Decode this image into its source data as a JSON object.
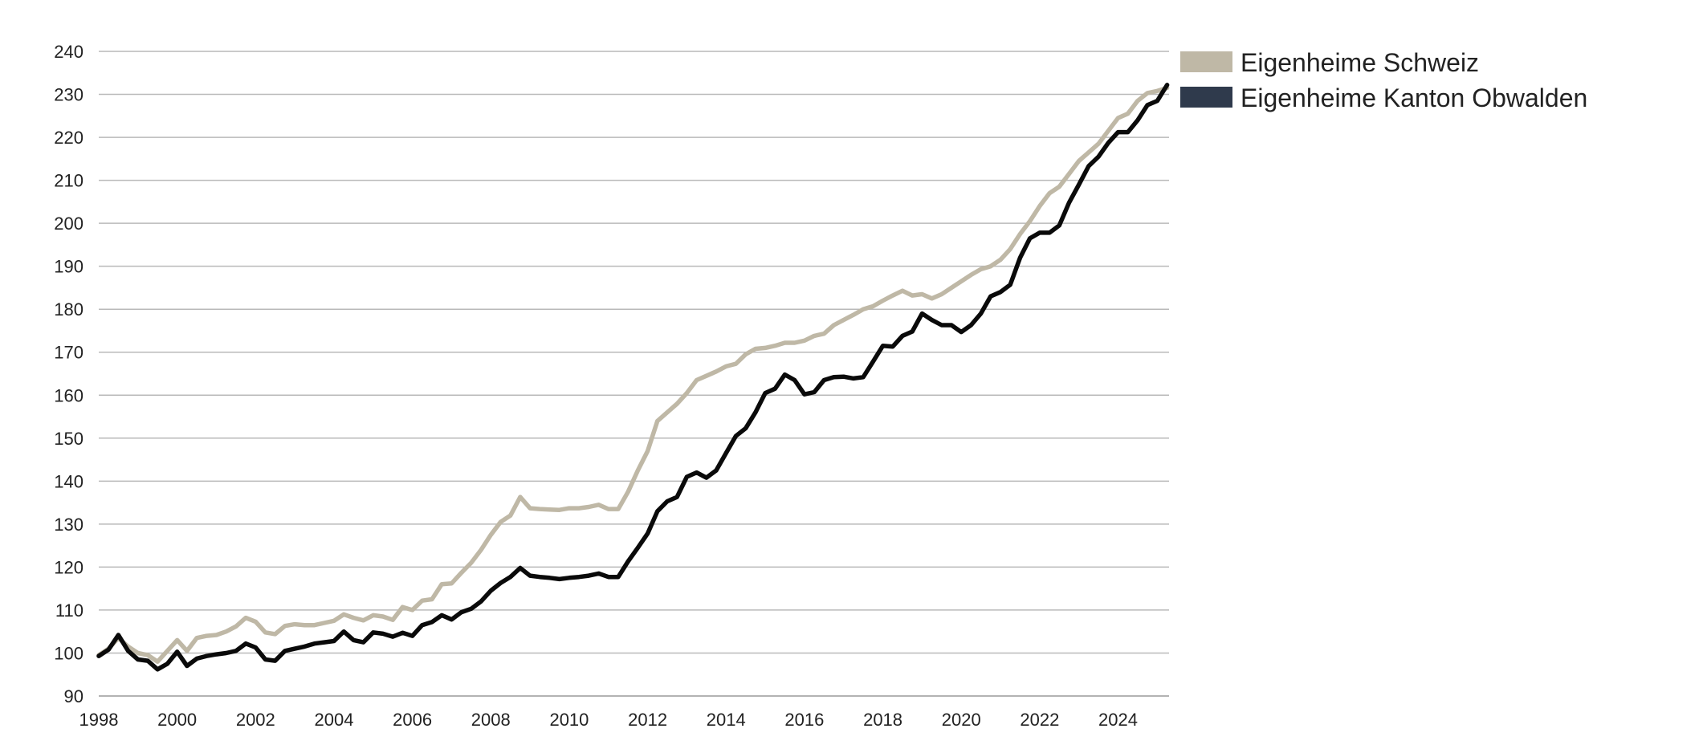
{
  "chart_data": {
    "type": "line",
    "title": "",
    "xlabel": "",
    "ylabel": "",
    "xlim": [
      1998,
      2025.3
    ],
    "ylim": [
      90,
      240
    ],
    "grid": true,
    "legend_position": "top-right",
    "x_ticks": [
      "1998",
      "2000",
      "2002",
      "2004",
      "2006",
      "2008",
      "2010",
      "2012",
      "2014",
      "2016",
      "2018",
      "2020",
      "2022",
      "2024"
    ],
    "y_ticks": [
      "90",
      "100",
      "110",
      "120",
      "130",
      "140",
      "150",
      "160",
      "170",
      "180",
      "190",
      "200",
      "210",
      "220",
      "230",
      "240"
    ],
    "series": [
      {
        "name": "Eigenheime Schweiz",
        "color": "#bfb8a6",
        "points": [
          [
            1998.0,
            99.5
          ],
          [
            1998.25,
            101.0
          ],
          [
            1998.5,
            103.5
          ],
          [
            1998.75,
            101.5
          ],
          [
            1999.0,
            100.0
          ],
          [
            1999.25,
            99.5
          ],
          [
            1999.5,
            98.0
          ],
          [
            1999.75,
            100.5
          ],
          [
            2000.0,
            103.0
          ],
          [
            2000.25,
            100.5
          ],
          [
            2000.5,
            103.5
          ],
          [
            2000.75,
            104.0
          ],
          [
            2001.0,
            104.2
          ],
          [
            2001.25,
            105.0
          ],
          [
            2001.5,
            106.2
          ],
          [
            2001.75,
            108.2
          ],
          [
            2002.0,
            107.3
          ],
          [
            2002.25,
            104.8
          ],
          [
            2002.5,
            104.4
          ],
          [
            2002.75,
            106.3
          ],
          [
            2003.0,
            106.7
          ],
          [
            2003.25,
            106.5
          ],
          [
            2003.5,
            106.5
          ],
          [
            2003.75,
            107.0
          ],
          [
            2004.0,
            107.5
          ],
          [
            2004.25,
            109.0
          ],
          [
            2004.5,
            108.2
          ],
          [
            2004.75,
            107.6
          ],
          [
            2005.0,
            108.8
          ],
          [
            2005.25,
            108.5
          ],
          [
            2005.5,
            107.7
          ],
          [
            2005.75,
            110.7
          ],
          [
            2006.0,
            110.0
          ],
          [
            2006.25,
            112.2
          ],
          [
            2006.5,
            112.5
          ],
          [
            2006.75,
            116.0
          ],
          [
            2007.0,
            116.2
          ],
          [
            2007.25,
            118.7
          ],
          [
            2007.5,
            121.0
          ],
          [
            2007.75,
            124.0
          ],
          [
            2008.0,
            127.5
          ],
          [
            2008.25,
            130.5
          ],
          [
            2008.5,
            132.0
          ],
          [
            2008.75,
            136.3
          ],
          [
            2009.0,
            133.7
          ],
          [
            2009.25,
            133.5
          ],
          [
            2009.5,
            133.4
          ],
          [
            2009.75,
            133.3
          ],
          [
            2010.0,
            133.7
          ],
          [
            2010.25,
            133.7
          ],
          [
            2010.5,
            134.0
          ],
          [
            2010.75,
            134.5
          ],
          [
            2011.0,
            133.5
          ],
          [
            2011.25,
            133.5
          ],
          [
            2011.5,
            137.5
          ],
          [
            2011.75,
            142.5
          ],
          [
            2012.0,
            147.0
          ],
          [
            2012.25,
            154.0
          ],
          [
            2012.5,
            156.0
          ],
          [
            2012.75,
            158.0
          ],
          [
            2013.0,
            160.5
          ],
          [
            2013.25,
            163.5
          ],
          [
            2013.5,
            164.5
          ],
          [
            2013.75,
            165.5
          ],
          [
            2014.0,
            166.7
          ],
          [
            2014.25,
            167.3
          ],
          [
            2014.5,
            169.5
          ],
          [
            2014.75,
            170.8
          ],
          [
            2015.0,
            171.0
          ],
          [
            2015.25,
            171.5
          ],
          [
            2015.5,
            172.2
          ],
          [
            2015.75,
            172.2
          ],
          [
            2016.0,
            172.7
          ],
          [
            2016.25,
            173.8
          ],
          [
            2016.5,
            174.3
          ],
          [
            2016.75,
            176.3
          ],
          [
            2017.0,
            177.5
          ],
          [
            2017.25,
            178.7
          ],
          [
            2017.5,
            180.0
          ],
          [
            2017.75,
            180.7
          ],
          [
            2018.0,
            182.0
          ],
          [
            2018.25,
            183.2
          ],
          [
            2018.5,
            184.3
          ],
          [
            2018.75,
            183.2
          ],
          [
            2019.0,
            183.5
          ],
          [
            2019.25,
            182.5
          ],
          [
            2019.5,
            183.5
          ],
          [
            2019.75,
            185.0
          ],
          [
            2020.0,
            186.5
          ],
          [
            2020.25,
            188.0
          ],
          [
            2020.5,
            189.3
          ],
          [
            2020.75,
            190.0
          ],
          [
            2021.0,
            191.5
          ],
          [
            2021.25,
            194.0
          ],
          [
            2021.5,
            197.5
          ],
          [
            2021.75,
            200.5
          ],
          [
            2022.0,
            204.0
          ],
          [
            2022.25,
            207.0
          ],
          [
            2022.5,
            208.5
          ],
          [
            2022.75,
            211.5
          ],
          [
            2023.0,
            214.5
          ],
          [
            2023.25,
            216.5
          ],
          [
            2023.5,
            218.5
          ],
          [
            2023.75,
            221.5
          ],
          [
            2024.0,
            224.5
          ],
          [
            2024.25,
            225.5
          ],
          [
            2024.5,
            228.5
          ],
          [
            2024.75,
            230.3
          ],
          [
            2025.0,
            230.8
          ],
          [
            2025.25,
            231.5
          ]
        ]
      },
      {
        "name": "Eigenheime Kanton Obwalden",
        "color": "#0a0a0a",
        "legend_color": "#2f3a4c",
        "points": [
          [
            1998.0,
            99.3
          ],
          [
            1998.25,
            100.8
          ],
          [
            1998.5,
            104.2
          ],
          [
            1998.75,
            100.5
          ],
          [
            1999.0,
            98.5
          ],
          [
            1999.25,
            98.2
          ],
          [
            1999.5,
            96.2
          ],
          [
            1999.75,
            97.5
          ],
          [
            2000.0,
            100.3
          ],
          [
            2000.25,
            97.0
          ],
          [
            2000.5,
            98.7
          ],
          [
            2000.75,
            99.3
          ],
          [
            2001.0,
            99.7
          ],
          [
            2001.25,
            100.0
          ],
          [
            2001.5,
            100.5
          ],
          [
            2001.75,
            102.2
          ],
          [
            2002.0,
            101.3
          ],
          [
            2002.25,
            98.5
          ],
          [
            2002.5,
            98.2
          ],
          [
            2002.75,
            100.5
          ],
          [
            2003.0,
            101.0
          ],
          [
            2003.25,
            101.5
          ],
          [
            2003.5,
            102.2
          ],
          [
            2003.75,
            102.5
          ],
          [
            2004.0,
            102.8
          ],
          [
            2004.25,
            105.0
          ],
          [
            2004.5,
            103.0
          ],
          [
            2004.75,
            102.5
          ],
          [
            2005.0,
            104.8
          ],
          [
            2005.25,
            104.5
          ],
          [
            2005.5,
            103.8
          ],
          [
            2005.75,
            104.7
          ],
          [
            2006.0,
            104.0
          ],
          [
            2006.25,
            106.5
          ],
          [
            2006.5,
            107.2
          ],
          [
            2006.75,
            108.8
          ],
          [
            2007.0,
            107.8
          ],
          [
            2007.25,
            109.5
          ],
          [
            2007.5,
            110.3
          ],
          [
            2007.75,
            112.0
          ],
          [
            2008.0,
            114.5
          ],
          [
            2008.25,
            116.3
          ],
          [
            2008.5,
            117.7
          ],
          [
            2008.75,
            119.8
          ],
          [
            2009.0,
            118.0
          ],
          [
            2009.25,
            117.7
          ],
          [
            2009.5,
            117.5
          ],
          [
            2009.75,
            117.2
          ],
          [
            2010.0,
            117.5
          ],
          [
            2010.25,
            117.7
          ],
          [
            2010.5,
            118.0
          ],
          [
            2010.75,
            118.5
          ],
          [
            2011.0,
            117.7
          ],
          [
            2011.25,
            117.7
          ],
          [
            2011.5,
            121.3
          ],
          [
            2011.75,
            124.5
          ],
          [
            2012.0,
            127.8
          ],
          [
            2012.25,
            133.0
          ],
          [
            2012.5,
            135.3
          ],
          [
            2012.75,
            136.3
          ],
          [
            2013.0,
            141.0
          ],
          [
            2013.25,
            142.0
          ],
          [
            2013.5,
            140.8
          ],
          [
            2013.75,
            142.5
          ],
          [
            2014.0,
            146.5
          ],
          [
            2014.25,
            150.5
          ],
          [
            2014.5,
            152.3
          ],
          [
            2014.75,
            156.0
          ],
          [
            2015.0,
            160.5
          ],
          [
            2015.25,
            161.5
          ],
          [
            2015.5,
            164.8
          ],
          [
            2015.75,
            163.5
          ],
          [
            2016.0,
            160.2
          ],
          [
            2016.25,
            160.7
          ],
          [
            2016.5,
            163.5
          ],
          [
            2016.75,
            164.2
          ],
          [
            2017.0,
            164.3
          ],
          [
            2017.25,
            163.9
          ],
          [
            2017.5,
            164.2
          ],
          [
            2017.75,
            167.8
          ],
          [
            2018.0,
            171.5
          ],
          [
            2018.25,
            171.3
          ],
          [
            2018.5,
            173.8
          ],
          [
            2018.75,
            174.8
          ],
          [
            2019.0,
            179.0
          ],
          [
            2019.25,
            177.5
          ],
          [
            2019.5,
            176.3
          ],
          [
            2019.75,
            176.3
          ],
          [
            2020.0,
            174.7
          ],
          [
            2020.25,
            176.3
          ],
          [
            2020.5,
            179.0
          ],
          [
            2020.75,
            183.0
          ],
          [
            2021.0,
            184.0
          ],
          [
            2021.25,
            185.7
          ],
          [
            2021.5,
            192.0
          ],
          [
            2021.75,
            196.5
          ],
          [
            2022.0,
            197.8
          ],
          [
            2022.25,
            197.8
          ],
          [
            2022.5,
            199.5
          ],
          [
            2022.75,
            204.8
          ],
          [
            2023.0,
            209.0
          ],
          [
            2023.25,
            213.3
          ],
          [
            2023.5,
            215.5
          ],
          [
            2023.75,
            218.7
          ],
          [
            2024.0,
            221.2
          ],
          [
            2024.25,
            221.2
          ],
          [
            2024.5,
            224.0
          ],
          [
            2024.75,
            227.5
          ],
          [
            2025.0,
            228.5
          ],
          [
            2025.25,
            232.2
          ]
        ]
      }
    ]
  }
}
